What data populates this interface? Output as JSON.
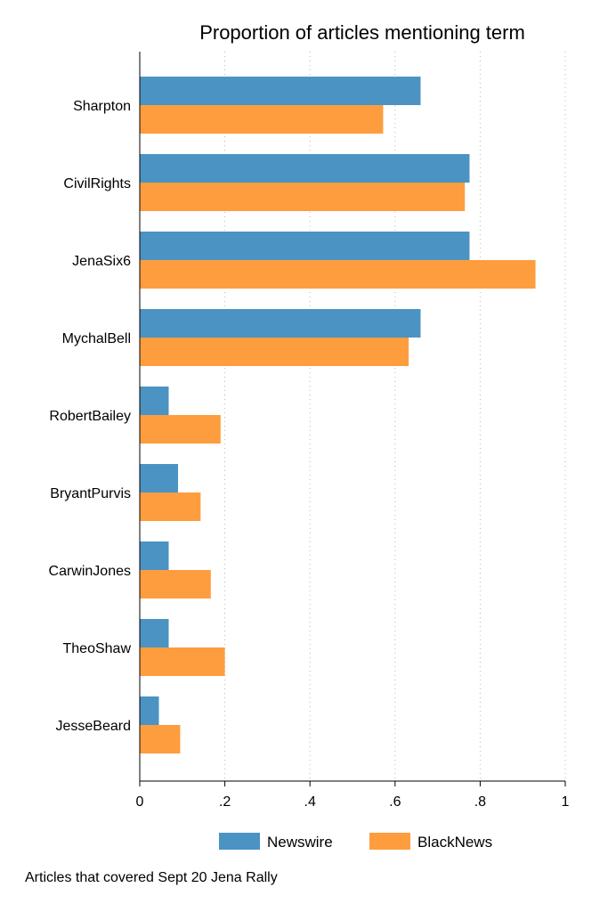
{
  "chart_data": {
    "type": "bar",
    "orientation": "horizontal",
    "title": "Proportion of articles mentioning term",
    "note": "Articles that covered Sept 20 Jena Rally",
    "categories": [
      "Sharpton",
      "CivilRights",
      "JenaSix6",
      "MychalBell",
      "RobertBailey",
      "BryantPurvis",
      "CarwinJones",
      "TheoShaw",
      "JesseBeard"
    ],
    "series": [
      {
        "name": "Newswire",
        "color": "#4b93c3",
        "values": [
          0.66,
          0.775,
          0.775,
          0.66,
          0.068,
          0.09,
          0.068,
          0.068,
          0.045
        ]
      },
      {
        "name": "BlackNews",
        "color": "#fe9d3e",
        "values": [
          0.572,
          0.764,
          0.93,
          0.632,
          0.19,
          0.143,
          0.167,
          0.2,
          0.095
        ]
      }
    ],
    "xlim": [
      0,
      1
    ],
    "xticks": [
      0,
      0.2,
      0.4,
      0.6,
      0.8,
      1
    ],
    "xtick_labels": [
      "0",
      ".2",
      ".4",
      ".6",
      ".8",
      "1"
    ],
    "grid": "vertical dotted",
    "legend_position": "bottom"
  }
}
